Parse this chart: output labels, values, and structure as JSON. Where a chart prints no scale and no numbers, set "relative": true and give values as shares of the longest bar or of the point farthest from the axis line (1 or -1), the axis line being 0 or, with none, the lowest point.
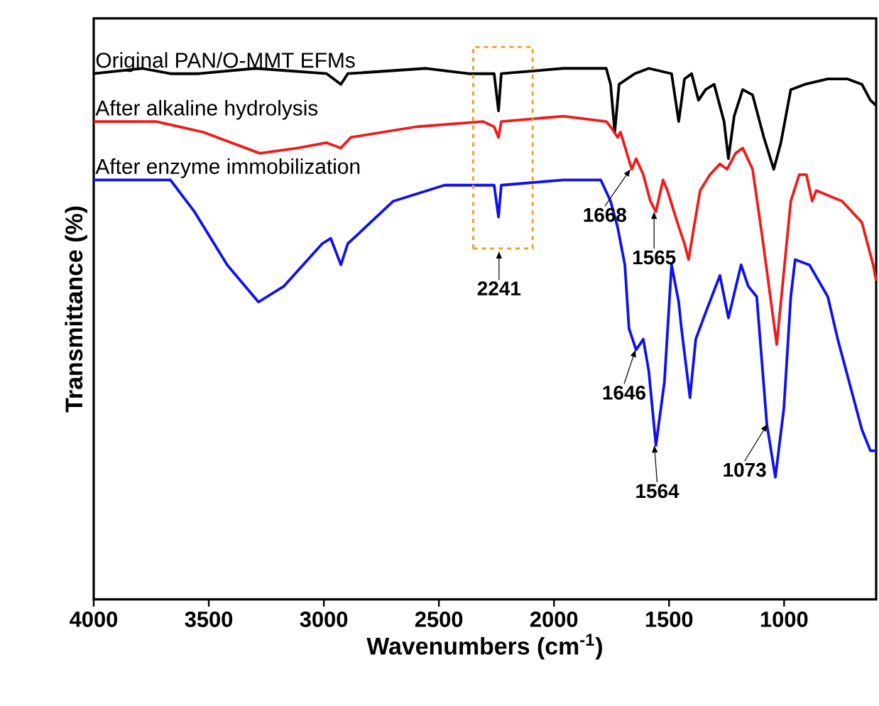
{
  "chart_data": {
    "type": "line",
    "relative": true,
    "xlabel": "Wavenumbers (cm$^{-1}$)",
    "ylabel": "Transmittance (%)",
    "xlim": [
      4000,
      600
    ],
    "xticks": [
      4000,
      3500,
      3000,
      2500,
      2000,
      1500,
      1000
    ],
    "tick_labels": "x",
    "legend": false,
    "grid": false,
    "marker": "none",
    "line_style": "solid",
    "series": [
      {
        "name": "Original PAN/O-MMT EFMs",
        "color": "#000000",
        "x": [
          4000,
          3790,
          3667,
          3543,
          3297,
          2988,
          2926,
          2896,
          2556,
          2371,
          2260,
          2241,
          2229,
          1958,
          1773,
          1754,
          1736,
          1717,
          1649,
          1588,
          1489,
          1458,
          1433,
          1402,
          1372,
          1341,
          1304,
          1261,
          1242,
          1217,
          1180,
          1137,
          1088,
          1045,
          1014,
          971,
          909,
          810,
          724,
          662,
          625,
          600
        ],
        "values": [
          0.99,
          1.0,
          0.99,
          0.99,
          1.0,
          0.99,
          0.97,
          0.99,
          1.0,
          0.99,
          0.99,
          0.92,
          0.99,
          1.0,
          1.0,
          0.97,
          0.88,
          0.97,
          0.99,
          1.0,
          0.99,
          0.9,
          0.98,
          0.99,
          0.94,
          0.96,
          0.97,
          0.9,
          0.83,
          0.91,
          0.96,
          0.95,
          0.87,
          0.81,
          0.86,
          0.96,
          0.97,
          0.98,
          0.98,
          0.97,
          0.94,
          0.93
        ]
      },
      {
        "name": "After alkaline hydrolysis",
        "color": "#ee1c1c",
        "x": [
          4000,
          3729,
          3525,
          3278,
          3112,
          2988,
          2926,
          2883,
          2599,
          2309,
          2260,
          2241,
          2229,
          1958,
          1773,
          1754,
          1723,
          1711,
          1662,
          1643,
          1612,
          1581,
          1557,
          1526,
          1507,
          1464,
          1433,
          1415,
          1396,
          1365,
          1322,
          1279,
          1248,
          1211,
          1180,
          1137,
          1094,
          1032,
          971,
          934,
          903,
          878,
          860,
          748,
          662,
          613,
          600
        ],
        "values": [
          0.9,
          0.9,
          0.88,
          0.84,
          0.85,
          0.86,
          0.85,
          0.87,
          0.89,
          0.9,
          0.89,
          0.87,
          0.9,
          0.91,
          0.9,
          0.89,
          0.87,
          0.88,
          0.81,
          0.83,
          0.8,
          0.75,
          0.73,
          0.79,
          0.77,
          0.71,
          0.67,
          0.64,
          0.69,
          0.77,
          0.8,
          0.82,
          0.81,
          0.84,
          0.85,
          0.81,
          0.68,
          0.48,
          0.75,
          0.8,
          0.8,
          0.75,
          0.77,
          0.75,
          0.71,
          0.63,
          0.6
        ]
      },
      {
        "name": "After enzyme immobilization",
        "color": "#1010ee",
        "x": [
          4000,
          3729,
          3667,
          3562,
          3420,
          3284,
          3173,
          3007,
          2970,
          2926,
          2896,
          2846,
          2698,
          2476,
          2371,
          2260,
          2241,
          2229,
          1958,
          1797,
          1754,
          1723,
          1692,
          1674,
          1643,
          1612,
          1588,
          1557,
          1520,
          1489,
          1458,
          1446,
          1409,
          1384,
          1341,
          1279,
          1242,
          1187,
          1156,
          1119,
          1075,
          1038,
          1001,
          971,
          952,
          890,
          810,
          767,
          662,
          625,
          600
        ],
        "values": [
          0.79,
          0.79,
          0.79,
          0.73,
          0.63,
          0.56,
          0.59,
          0.67,
          0.68,
          0.63,
          0.67,
          0.69,
          0.75,
          0.78,
          0.78,
          0.78,
          0.72,
          0.78,
          0.79,
          0.79,
          0.75,
          0.7,
          0.63,
          0.51,
          0.47,
          0.49,
          0.43,
          0.29,
          0.41,
          0.63,
          0.56,
          0.51,
          0.38,
          0.49,
          0.54,
          0.61,
          0.53,
          0.63,
          0.59,
          0.57,
          0.33,
          0.23,
          0.36,
          0.57,
          0.64,
          0.63,
          0.57,
          0.49,
          0.32,
          0.28,
          0.28
        ]
      }
    ],
    "annotations": [
      "2241",
      {
        "text": "1668",
        "x": 1668,
        "y": 0.81
      },
      {
        "text": "1565",
        "x": 1565,
        "y": 0.73
      },
      {
        "text": "1646",
        "x": 1646,
        "y": 0.47
      },
      {
        "text": "1564",
        "x": 1564,
        "y": 0.29
      },
      {
        "text": "1073",
        "x": 1073,
        "y": 0.33
      }
    ]
  }
}
